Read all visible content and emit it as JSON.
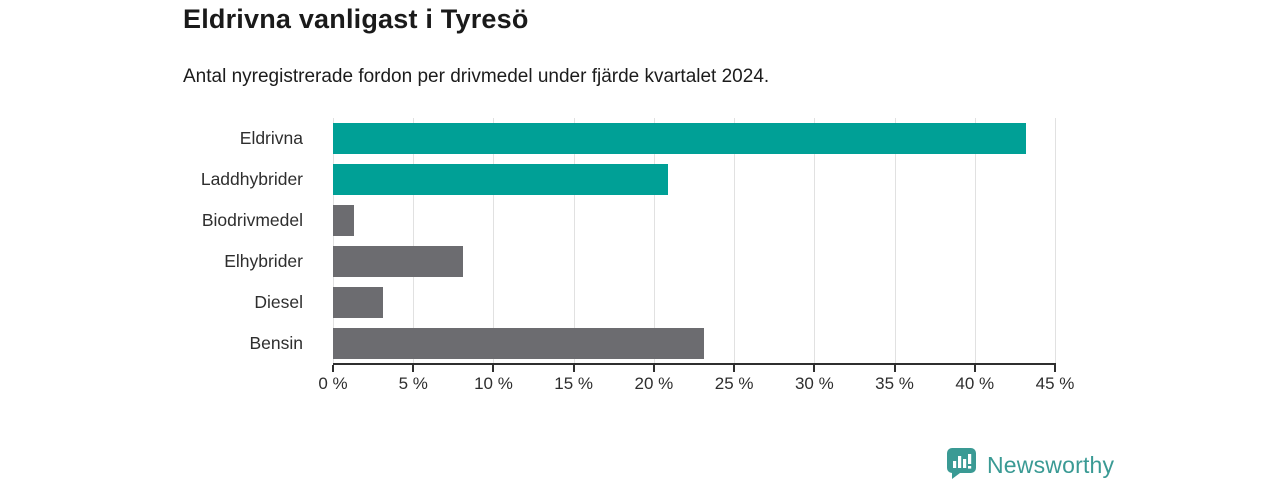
{
  "header": {
    "title": "Eldrivna vanligast i Tyresö",
    "subtitle": "Antal nyregistrerade fordon per drivmedel under fjärde kvartalet 2024."
  },
  "chart_data": {
    "type": "bar",
    "orientation": "horizontal",
    "title": "Eldrivna vanligast i Tyresö",
    "subtitle": "Antal nyregistrerade fordon per drivmedel under fjärde kvartalet 2024.",
    "categories": [
      "Eldrivna",
      "Laddhybrider",
      "Biodrivmedel",
      "Elhybrider",
      "Diesel",
      "Bensin"
    ],
    "values": [
      43.2,
      20.9,
      1.3,
      8.1,
      3.1,
      23.1
    ],
    "unit": "%",
    "bar_colors": [
      "#00a096",
      "#00a096",
      "#6c6c70",
      "#6c6c70",
      "#6c6c70",
      "#6c6c70"
    ],
    "x_ticks": [
      "0 %",
      "5 %",
      "10 %",
      "15 %",
      "20 %",
      "25 %",
      "30 %",
      "35 %",
      "40 %",
      "45 %"
    ],
    "xlim": [
      0,
      45
    ],
    "grid": true,
    "gridline_color": "#e1e1e1",
    "axis_color": "#2f2f2f",
    "legend": "none"
  },
  "branding": {
    "logo_text": "Newsworthy",
    "logo_color": "#3a9a94",
    "logo_icon": "bar-chart-speech-bubble-icon"
  }
}
